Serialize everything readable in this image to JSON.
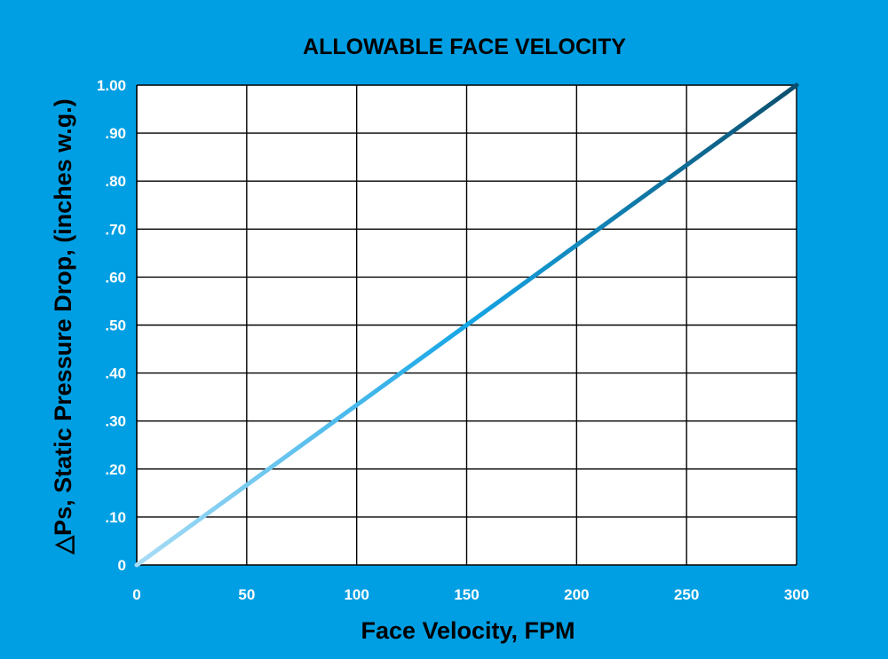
{
  "chart_data": {
    "type": "line",
    "title": "ALLOWABLE FACE VELOCITY",
    "xlabel": "Face Velocity, FPM",
    "ylabel": "△Ps, Static Pressure Drop, (inches w.g.)",
    "xlim": [
      0,
      300
    ],
    "ylim": [
      0,
      1.0
    ],
    "x_ticks": [
      0,
      50,
      100,
      150,
      200,
      250,
      300
    ],
    "x_tick_labels": [
      "0",
      "50",
      "100",
      "150",
      "200",
      "250",
      "300"
    ],
    "y_ticks": [
      0,
      0.1,
      0.2,
      0.3,
      0.4,
      0.5,
      0.6,
      0.7,
      0.8,
      0.9,
      1.0
    ],
    "y_tick_labels": [
      "0",
      ".10",
      ".20",
      ".30",
      ".40",
      ".50",
      ".60",
      ".70",
      ".80",
      ".90",
      "1.00"
    ],
    "grid": true,
    "series": [
      {
        "x": [
          0,
          300
        ],
        "y": [
          0,
          1.0
        ]
      }
    ],
    "colors": {
      "background": "#009fe3",
      "plot_background": "#ffffff",
      "grid": "#000000",
      "line_start": "#a8dcf5",
      "line_mid": "#15a6e6",
      "line_end": "#0b4f6e"
    }
  }
}
